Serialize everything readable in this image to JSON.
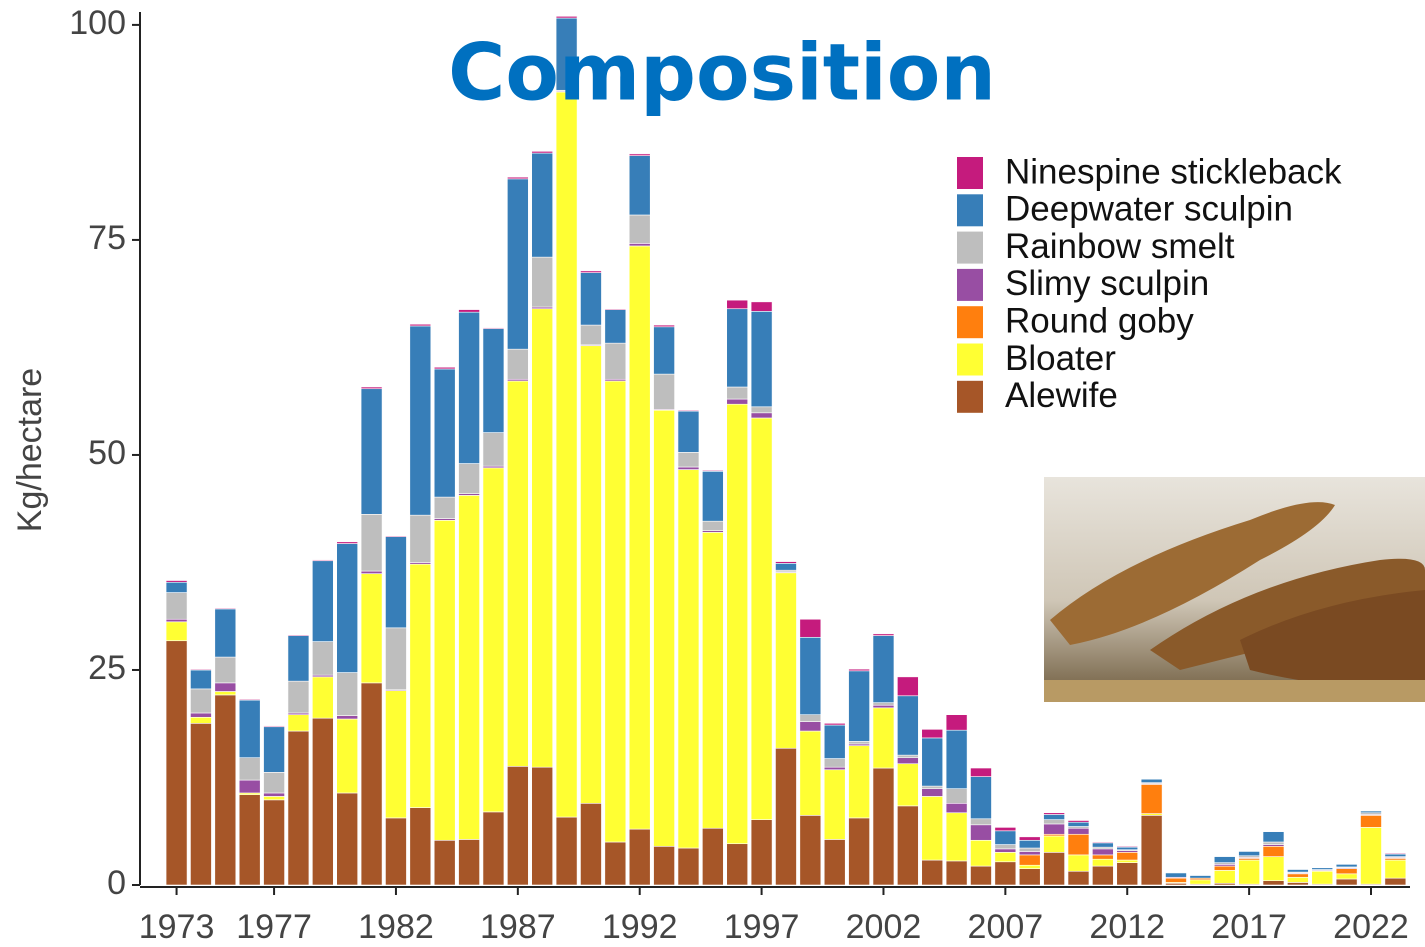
{
  "chart_data": {
    "type": "stacked_bar",
    "title": "Composition",
    "y_label": "Kg/hectare",
    "x": [
      1973,
      1974,
      1975,
      1976,
      1977,
      1978,
      1979,
      1980,
      1981,
      1982,
      1983,
      1984,
      1985,
      1986,
      1987,
      1988,
      1989,
      1990,
      1991,
      1992,
      1993,
      1994,
      1995,
      1996,
      1997,
      1998,
      1999,
      2000,
      2001,
      2002,
      2003,
      2004,
      2005,
      2006,
      2007,
      2008,
      2009,
      2010,
      2011,
      2012,
      2013,
      2014,
      2015,
      2016,
      2017,
      2018,
      2019,
      2020,
      2021,
      2022,
      2023
    ],
    "xlim": [
      1971.5,
      2023.6
    ],
    "xticks": [
      1973,
      1977,
      1982,
      1987,
      1992,
      1997,
      2002,
      2007,
      2012,
      2017,
      2022
    ],
    "ylim": [
      0,
      101.5
    ],
    "yticks": [
      0,
      25,
      50,
      75,
      100
    ],
    "series": [
      {
        "name": "Alewife",
        "color": "#a65628",
        "values": [
          28.4,
          18.8,
          22.1,
          10.5,
          9.9,
          17.9,
          19.4,
          10.7,
          23.5,
          7.8,
          9.0,
          5.2,
          5.3,
          8.5,
          13.8,
          13.7,
          7.9,
          9.5,
          5.0,
          6.5,
          4.5,
          4.3,
          6.6,
          4.8,
          7.6,
          15.9,
          8.1,
          5.3,
          7.8,
          13.6,
          9.2,
          2.9,
          2.8,
          2.2,
          2.7,
          1.9,
          3.8,
          1.6,
          2.2,
          2.6,
          8.1,
          0.2,
          0.1,
          0.2,
          0.1,
          0.5,
          0.3,
          0.1,
          0.7,
          0.1,
          0.8
        ]
      },
      {
        "name": "Bloater",
        "color": "#ffff33",
        "values": [
          2.2,
          0.7,
          0.4,
          0.2,
          0.4,
          1.9,
          4.8,
          8.6,
          12.7,
          14.8,
          28.3,
          37.2,
          40.0,
          40.0,
          44.8,
          53.3,
          84.3,
          53.2,
          53.6,
          67.8,
          50.7,
          44.0,
          34.4,
          51.1,
          46.7,
          20.4,
          9.8,
          8.1,
          8.4,
          7.0,
          4.9,
          7.4,
          5.6,
          3.0,
          1.1,
          0.4,
          1.9,
          1.9,
          0.8,
          0.3,
          0.2,
          0.1,
          0.5,
          1.5,
          2.8,
          2.8,
          0.6,
          1.5,
          0.6,
          6.6,
          2.1
        ]
      },
      {
        "name": "Round goby",
        "color": "#ff7f0e",
        "values": [
          0,
          0,
          0,
          0,
          0,
          0,
          0,
          0,
          0,
          0,
          0,
          0,
          0,
          0,
          0,
          0,
          0,
          0,
          0,
          0,
          0,
          0,
          0,
          0,
          0,
          0,
          0,
          0,
          0,
          0,
          0,
          0,
          0,
          0,
          0,
          1.2,
          0.2,
          2.4,
          0.5,
          0.9,
          3.4,
          0.5,
          0.2,
          0.5,
          0.2,
          1.2,
          0.4,
          0,
          0.6,
          1.4,
          0.2
        ]
      },
      {
        "name": "Slimy sculpin",
        "color": "#984ea3",
        "values": [
          0.3,
          0.5,
          1.0,
          1.5,
          0.4,
          0.2,
          0.2,
          0.4,
          0.3,
          0.1,
          0.2,
          0.2,
          0.2,
          0.2,
          0.2,
          0.2,
          0.1,
          0.1,
          0.2,
          0.3,
          0.1,
          0.3,
          0.2,
          0.6,
          0.6,
          0.1,
          1.1,
          0.3,
          0.2,
          0.3,
          0.7,
          0.9,
          1.1,
          1.8,
          0.4,
          0.4,
          1.2,
          0.7,
          0.7,
          0.2,
          0.1,
          0.1,
          0,
          0.2,
          0.1,
          0.2,
          0.1,
          0.1,
          0.1,
          0.1,
          0.1
        ]
      },
      {
        "name": "Rainbow smelt",
        "color": "#bebebe",
        "values": [
          3.1,
          2.8,
          3.0,
          2.6,
          2.4,
          3.7,
          3.9,
          5.0,
          6.6,
          7.2,
          5.5,
          2.5,
          3.5,
          3.9,
          3.5,
          5.8,
          0.1,
          2.3,
          4.2,
          3.3,
          4.1,
          1.7,
          1.1,
          1.4,
          0.7,
          0.2,
          0.8,
          1.0,
          0.3,
          0.3,
          0.3,
          0.3,
          1.7,
          0.7,
          0.5,
          0.4,
          0.5,
          0.2,
          0.2,
          0.1,
          0.1,
          0,
          0,
          0.2,
          0.2,
          0.3,
          0.1,
          0.1,
          0.1,
          0.2,
          0.1
        ]
      },
      {
        "name": "Deepwater sculpin",
        "color": "#377eb8",
        "values": [
          1.2,
          2.2,
          5.6,
          6.7,
          5.3,
          5.3,
          9.4,
          15.0,
          14.6,
          10.6,
          22.0,
          14.9,
          17.6,
          12.1,
          19.8,
          12.1,
          8.4,
          6.1,
          3.9,
          6.9,
          5.5,
          4.8,
          5.8,
          9.1,
          11.1,
          0.8,
          9.0,
          3.9,
          8.2,
          7.8,
          6.9,
          5.6,
          6.8,
          4.9,
          1.6,
          0.9,
          0.6,
          0.5,
          0.5,
          0.3,
          0.4,
          0.5,
          0.3,
          0.7,
          0.5,
          1.2,
          0.3,
          0.2,
          0.3,
          0.2,
          0.3
        ]
      },
      {
        "name": "Ninespine stickleback",
        "color": "#c51b7d",
        "values": [
          0.2,
          0.1,
          0.1,
          0.1,
          0.1,
          0.1,
          0.1,
          0.2,
          0.2,
          0.1,
          0.2,
          0.2,
          0.3,
          0.1,
          0.2,
          0.2,
          0.2,
          0.2,
          0.1,
          0.2,
          0.2,
          0.1,
          0.1,
          1.0,
          1.1,
          0.2,
          2.1,
          0.2,
          0.2,
          0.2,
          2.2,
          1.0,
          1.8,
          1.0,
          0.4,
          0.4,
          0.2,
          0.2,
          0.1,
          0.1,
          0,
          0,
          0,
          0,
          0,
          0,
          0,
          0,
          0,
          0,
          0.1
        ]
      }
    ]
  }
}
